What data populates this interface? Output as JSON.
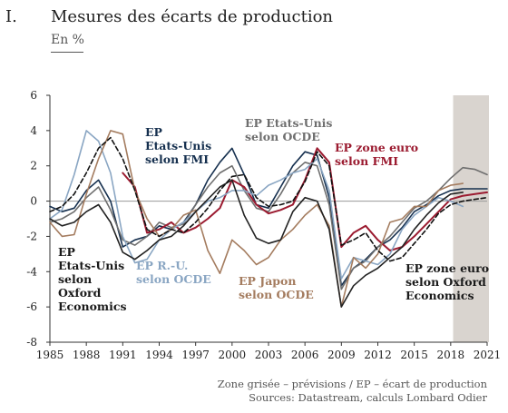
{
  "header": {
    "number": "I.",
    "title": "Mesures des écarts de production",
    "unit": "En %"
  },
  "footer": {
    "note": "Zone grisée – prévisions / EP – écart de production",
    "sources": "Sources: Datastream, calculs Lombard Odier"
  },
  "colors": {
    "fmi_us": "#16304f",
    "ocde_us": "#6f6f6f",
    "euro_fmi": "#9b1b30",
    "ocde_uk": "#8aa6c3",
    "ocde_jp": "#a47c5f",
    "oxford_us": "#222222",
    "oxford_euro": "#111111",
    "shade": "#d9d4cf"
  },
  "chart_data": {
    "type": "line",
    "xlabel": "",
    "ylabel": "",
    "xlim": [
      1985,
      2021
    ],
    "ylim": [
      -8,
      6
    ],
    "xticks": [
      "1985",
      "1988",
      "1991",
      "1994",
      "1997",
      "2000",
      "2003",
      "2006",
      "2009",
      "2012",
      "2015",
      "2018",
      "2021"
    ],
    "yticks": [
      "6",
      "4",
      "2",
      "0",
      "-2",
      "-4",
      "-6",
      "-8"
    ],
    "forecast_shading": [
      2018.2,
      2021.5
    ],
    "grid": false,
    "legend": "inline annotations",
    "series": [
      {
        "key": "fmi_us",
        "label": "EP\nEtats-Unis\nselon FMI",
        "color": "#16304f",
        "dash": "",
        "x": [
          1985,
          1986,
          1987,
          1988,
          1989,
          1990,
          1991,
          1992,
          1993,
          1994,
          1995,
          1996,
          1997,
          1998,
          1999,
          2000,
          2001,
          2002,
          2003,
          2004,
          2005,
          2006,
          2007,
          2008,
          2009,
          2010,
          2011,
          2012,
          2013,
          2014,
          2015,
          2016,
          2017,
          2018,
          2019,
          2020,
          2021
        ],
        "y": [
          -0.3,
          -0.6,
          -0.4,
          0.6,
          1.2,
          0.0,
          -2.6,
          -2.2,
          -2.0,
          -1.4,
          -1.6,
          -1.2,
          -0.2,
          1.2,
          2.2,
          3.0,
          1.5,
          -0.2,
          -0.4,
          0.8,
          2.0,
          2.8,
          2.6,
          0.2,
          -4.8,
          -3.8,
          -3.3,
          -2.6,
          -2.2,
          -1.5,
          -0.6,
          -0.2,
          0.3,
          0.6,
          0.7,
          0.7,
          0.7
        ]
      },
      {
        "key": "ocde_us",
        "label": "EP Etats-Unis\nselon OCDE",
        "color": "#6f6f6f",
        "dash": "",
        "x": [
          1985,
          1986,
          1987,
          1988,
          1989,
          1990,
          1991,
          1992,
          1993,
          1994,
          1995,
          1996,
          1997,
          1998,
          1999,
          2000,
          2001,
          2002,
          2003,
          2004,
          2005,
          2006,
          2007,
          2008,
          2009,
          2010,
          2011,
          2012,
          2013,
          2014,
          2015,
          2016,
          2017,
          2018,
          2019,
          2020,
          2021
        ],
        "y": [
          -1.2,
          -1.0,
          -0.6,
          0.2,
          0.8,
          -0.5,
          -2.2,
          -2.5,
          -2.0,
          -1.2,
          -1.5,
          -1.3,
          -0.2,
          0.8,
          1.6,
          2.0,
          0.6,
          -0.4,
          -0.6,
          0.4,
          1.6,
          2.2,
          2.0,
          -0.2,
          -5.0,
          -3.8,
          -3.4,
          -2.6,
          -2.0,
          -1.2,
          -0.4,
          0.0,
          0.6,
          1.3,
          1.9,
          1.8,
          1.5
        ]
      },
      {
        "key": "euro_fmi",
        "label": "EP zone euro\nselon FMI",
        "color": "#9b1b30",
        "dash": "",
        "x": [
          1991,
          1992,
          1993,
          1994,
          1995,
          1996,
          1997,
          1998,
          1999,
          2000,
          2001,
          2002,
          2003,
          2004,
          2005,
          2006,
          2007,
          2008,
          2009,
          2010,
          2011,
          2012,
          2013,
          2014,
          2015,
          2016,
          2017,
          2018,
          2019,
          2020,
          2021
        ],
        "y": [
          1.6,
          0.8,
          -1.8,
          -1.6,
          -1.2,
          -1.8,
          -1.5,
          -1.0,
          -0.4,
          1.2,
          0.8,
          -0.2,
          -0.7,
          -0.5,
          -0.2,
          1.2,
          3.0,
          2.2,
          -2.6,
          -1.8,
          -1.4,
          -2.2,
          -2.8,
          -2.6,
          -2.0,
          -1.3,
          -0.6,
          0.1,
          0.3,
          0.4,
          0.5
        ]
      },
      {
        "key": "ocde_uk",
        "label": "EP R.-U.\nselon OCDE",
        "color": "#8aa6c3",
        "dash": "",
        "x": [
          1985,
          1986,
          1987,
          1988,
          1989,
          1990,
          1991,
          1992,
          1993,
          1994,
          1995,
          1996,
          1997,
          1998,
          1999,
          2000,
          2001,
          2002,
          2003,
          2004,
          2005,
          2006,
          2007,
          2008,
          2009,
          2010,
          2011,
          2012,
          2013,
          2014,
          2015,
          2016,
          2017,
          2018,
          2019
        ],
        "y": [
          -1.0,
          -0.5,
          1.5,
          4.0,
          3.4,
          1.6,
          -2.0,
          -3.5,
          -3.3,
          -2.2,
          -1.6,
          -1.2,
          -0.6,
          0.0,
          0.2,
          0.6,
          0.6,
          0.3,
          0.9,
          1.2,
          1.6,
          1.8,
          2.4,
          0.6,
          -4.4,
          -3.2,
          -3.4,
          -3.6,
          -3.0,
          -1.6,
          -0.8,
          -0.3,
          0.2,
          0.0,
          -0.3
        ]
      },
      {
        "key": "ocde_jp",
        "label": "EP Japon\nselon OCDE",
        "color": "#a47c5f",
        "dash": "",
        "x": [
          1985,
          1986,
          1987,
          1988,
          1989,
          1990,
          1991,
          1992,
          1993,
          1994,
          1995,
          1996,
          1997,
          1998,
          1999,
          2000,
          2001,
          2002,
          2003,
          2004,
          2005,
          2006,
          2007,
          2008,
          2009,
          2010,
          2011,
          2012,
          2013,
          2014,
          2015,
          2016,
          2017,
          2018,
          2019
        ],
        "y": [
          -1.2,
          -2.0,
          -1.9,
          0.4,
          2.4,
          4.0,
          3.8,
          0.6,
          -1.0,
          -2.0,
          -1.6,
          -0.8,
          -0.5,
          -2.8,
          -4.1,
          -2.2,
          -2.8,
          -3.6,
          -3.2,
          -2.2,
          -1.6,
          -0.8,
          -0.2,
          -1.4,
          -6.0,
          -3.2,
          -3.8,
          -3.0,
          -1.2,
          -1.0,
          -0.3,
          -0.3,
          0.6,
          0.9,
          1.0
        ]
      },
      {
        "key": "oxford_us",
        "label": "EP\nEtats-Unis\nselon\nOxford\nEconomics",
        "color": "#222222",
        "dash": "",
        "x": [
          1985,
          1986,
          1987,
          1988,
          1989,
          1990,
          1991,
          1992,
          1993,
          1994,
          1995,
          1996,
          1997,
          1998,
          1999,
          2000,
          2001,
          2002,
          2003,
          2004,
          2005,
          2006,
          2007,
          2008,
          2009,
          2010,
          2011,
          2012,
          2013,
          2014,
          2015,
          2016,
          2017,
          2018,
          2019
        ],
        "y": [
          -1.0,
          -1.4,
          -1.2,
          -0.6,
          -0.2,
          -1.2,
          -2.9,
          -3.3,
          -2.8,
          -2.2,
          -2.0,
          -1.4,
          -0.6,
          0.1,
          0.8,
          1.2,
          -0.8,
          -2.1,
          -2.4,
          -2.2,
          -0.6,
          0.2,
          0.0,
          -1.6,
          -6.0,
          -4.8,
          -4.2,
          -3.8,
          -3.2,
          -2.6,
          -1.6,
          -0.8,
          -0.1,
          0.4,
          0.5
        ]
      },
      {
        "key": "oxford_euro",
        "label": "EP zone euro\nselon Oxford\nEconomics",
        "color": "#111111",
        "dash": "5 3",
        "x": [
          1985,
          1986,
          1987,
          1988,
          1989,
          1990,
          1991,
          1992,
          1993,
          1994,
          1995,
          1996,
          1997,
          1998,
          1999,
          2000,
          2001,
          2002,
          2003,
          2004,
          2005,
          2006,
          2007,
          2008,
          2009,
          2010,
          2011,
          2012,
          2013,
          2014,
          2015,
          2016,
          2017,
          2018,
          2019,
          2020,
          2021
        ],
        "y": [
          -0.6,
          -0.3,
          0.4,
          1.6,
          3.0,
          3.6,
          2.4,
          0.6,
          -1.6,
          -2.0,
          -1.6,
          -1.8,
          -1.2,
          -0.4,
          0.6,
          1.4,
          1.5,
          0.2,
          -0.3,
          -0.2,
          0.0,
          1.1,
          2.8,
          2.0,
          -2.5,
          -2.2,
          -1.8,
          -2.8,
          -3.4,
          -3.2,
          -2.4,
          -1.6,
          -0.7,
          -0.2,
          0.0,
          0.1,
          0.2
        ]
      }
    ],
    "annotations": [
      {
        "series": "fmi_us",
        "text": [
          "EP",
          "Etats-Unis",
          "selon FMI"
        ]
      },
      {
        "series": "ocde_us",
        "text": [
          "EP Etats-Unis",
          "selon OCDE"
        ]
      },
      {
        "series": "euro_fmi",
        "text": [
          "EP zone euro",
          "selon FMI"
        ]
      },
      {
        "series": "ocde_uk",
        "text": [
          "EP R.-U.",
          "selon OCDE"
        ]
      },
      {
        "series": "ocde_jp",
        "text": [
          "EP Japon",
          "selon OCDE"
        ]
      },
      {
        "series": "oxford_us",
        "text": [
          "EP",
          "Etats-Unis",
          "selon",
          "Oxford",
          "Economics"
        ]
      },
      {
        "series": "oxford_euro",
        "text": [
          "EP zone euro",
          "selon Oxford",
          "Economics"
        ]
      }
    ]
  }
}
